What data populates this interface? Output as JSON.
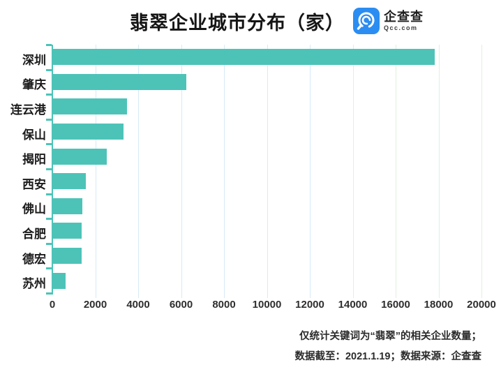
{
  "title": "翡翠企业城市分布（家）",
  "logo": {
    "icon": "qcc-spiral-icon",
    "name": "企查查",
    "domain": "Qcc.com",
    "icon_color": "#2b8df2"
  },
  "chart_data": {
    "type": "bar",
    "orientation": "horizontal",
    "title": "翡翠企业城市分布（家）",
    "categories": [
      "深圳",
      "肇庆",
      "连云港",
      "保山",
      "揭阳",
      "西安",
      "佛山",
      "合肥",
      "德宏",
      "苏州"
    ],
    "values": [
      17800,
      6200,
      3440,
      3300,
      2500,
      1520,
      1350,
      1340,
      1330,
      600
    ],
    "xlim": [
      0,
      20000
    ],
    "x_ticks": [
      0,
      2000,
      4000,
      6000,
      8000,
      10000,
      12000,
      14000,
      16000,
      18000,
      20000
    ],
    "grid": true,
    "legend": "none",
    "bar_color": "#4dc3b8",
    "axis_color": "#4dc3b8",
    "gridline_color_low": "#d5eaf8",
    "gridline_color_high": "#dcf2da",
    "gridline_color_split": 12000
  },
  "footnote": {
    "line1": "仅统计关键词为“翡翠”的相关企业数量；",
    "line2": "数据截至：2021.1.19；数据来源：企查查"
  }
}
